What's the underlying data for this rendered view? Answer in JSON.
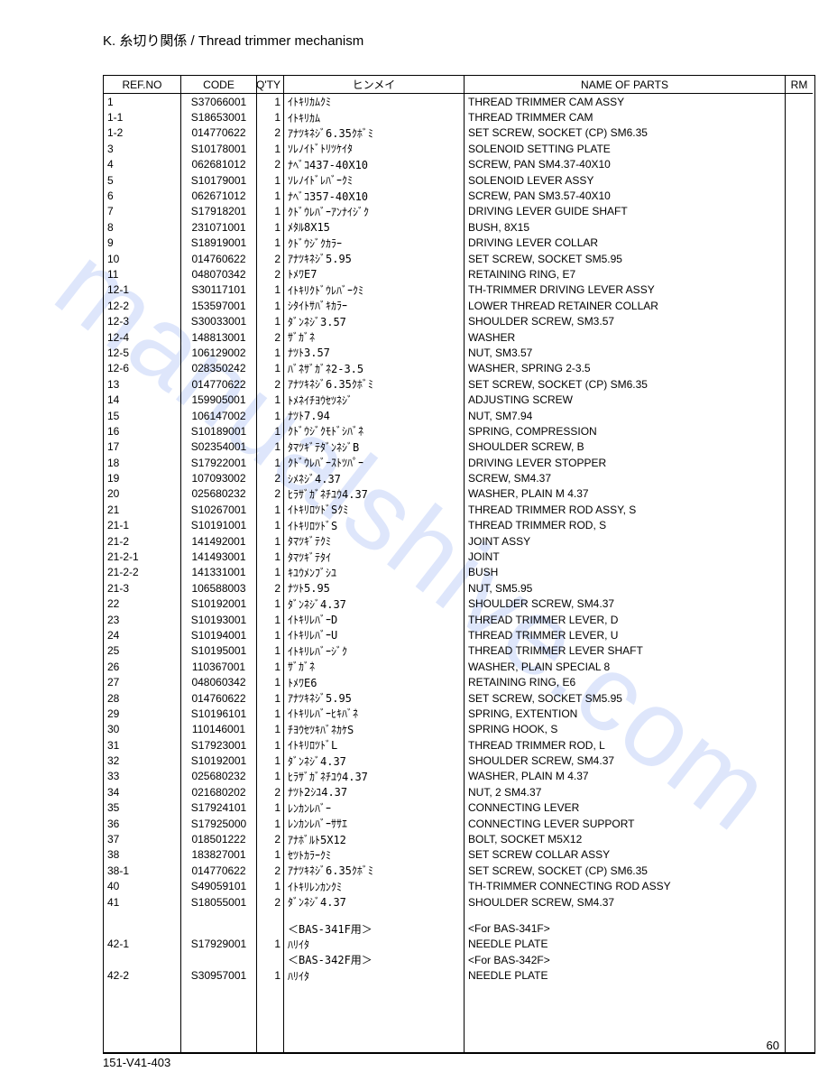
{
  "watermark_text": "manualshive.com",
  "section_title": "K. 糸切り関係 / Thread trimmer mechanism",
  "columns": {
    "ref": "REF.NO",
    "code": "CODE",
    "qty": "Q'TY",
    "hin": "ヒンメイ",
    "name": "NAME OF PARTS",
    "rm": "RM"
  },
  "rows": [
    {
      "ref": "1",
      "code": "S37066001",
      "qty": "1",
      "hin": "ｲﾄｷﾘｶﾑｸﾐ",
      "name": "THREAD TRIMMER CAM ASSY"
    },
    {
      "ref": "1-1",
      "code": "S18653001",
      "qty": "1",
      "hin": "ｲﾄｷﾘｶﾑ",
      "name": "THREAD TRIMMER CAM"
    },
    {
      "ref": "1-2",
      "code": "014770622",
      "qty": "2",
      "hin": "ｱﾅﾂｷﾈｼﾞ6.35ｸﾎﾞﾐ",
      "name": "SET SCREW, SOCKET (CP) SM6.35"
    },
    {
      "ref": "3",
      "code": "S10178001",
      "qty": "1",
      "hin": "ｿﾚﾉｲﾄﾞﾄﾘﾂｹｲﾀ",
      "name": "SOLENOID SETTING PLATE"
    },
    {
      "ref": "4",
      "code": "062681012",
      "qty": "2",
      "hin": "ﾅﾍﾞｺ437-40X10",
      "name": "SCREW, PAN SM4.37-40X10"
    },
    {
      "ref": "5",
      "code": "S10179001",
      "qty": "1",
      "hin": "ｿﾚﾉｲﾄﾞﾚﾊﾞｰｸﾐ",
      "name": "SOLENOID LEVER ASSY"
    },
    {
      "ref": "6",
      "code": "062671012",
      "qty": "1",
      "hin": "ﾅﾍﾞｺ357-40X10",
      "name": "SCREW, PAN SM3.57-40X10"
    },
    {
      "ref": "7",
      "code": "S17918201",
      "qty": "1",
      "hin": "ｸﾄﾞｳﾚﾊﾞｰｱﾝﾅｲｼﾞｸ",
      "name": "DRIVING LEVER GUIDE SHAFT"
    },
    {
      "ref": "8",
      "code": "231071001",
      "qty": "1",
      "hin": "ﾒﾀﾙ8X15",
      "name": "BUSH, 8X15"
    },
    {
      "ref": "9",
      "code": "S18919001",
      "qty": "1",
      "hin": "ｸﾄﾞｳｼﾞｸｶﾗｰ",
      "name": "DRIVING LEVER COLLAR"
    },
    {
      "ref": "10",
      "code": "014760622",
      "qty": "2",
      "hin": "ｱﾅﾂｷﾈｼﾞ5.95",
      "name": "SET SCREW, SOCKET SM5.95"
    },
    {
      "ref": "11",
      "code": "048070342",
      "qty": "2",
      "hin": "ﾄﾒﾜE7",
      "name": "RETAINING RING, E7"
    },
    {
      "ref": "12-1",
      "code": "S30117101",
      "qty": "1",
      "hin": "ｲﾄｷﾘｸﾄﾞｳﾚﾊﾞｰｸﾐ",
      "name": "TH-TRIMMER DRIVING LEVER ASSY"
    },
    {
      "ref": "12-2",
      "code": "153597001",
      "qty": "1",
      "hin": "ｼﾀｲﾄｻﾊﾞｷｶﾗｰ",
      "name": "LOWER THREAD RETAINER COLLAR"
    },
    {
      "ref": "12-3",
      "code": "S30033001",
      "qty": "1",
      "hin": "ﾀﾞﾝﾈｼﾞ3.57",
      "name": "SHOULDER SCREW, SM3.57"
    },
    {
      "ref": "12-4",
      "code": "148813001",
      "qty": "2",
      "hin": "ｻﾞｶﾞﾈ",
      "name": "WASHER"
    },
    {
      "ref": "12-5",
      "code": "106129002",
      "qty": "1",
      "hin": "ﾅﾂﾄ3.57",
      "name": "NUT, SM3.57"
    },
    {
      "ref": "12-6",
      "code": "028350242",
      "qty": "1",
      "hin": "ﾊﾞﾈｻﾞｶﾞﾈ2-3.5",
      "name": "WASHER, SPRING 2-3.5"
    },
    {
      "ref": "13",
      "code": "014770622",
      "qty": "2",
      "hin": "ｱﾅﾂｷﾈｼﾞ6.35ｸﾎﾞﾐ",
      "name": "SET SCREW, SOCKET (CP) SM6.35"
    },
    {
      "ref": "14",
      "code": "159905001",
      "qty": "1",
      "hin": "ﾄﾒﾈｲﾁﾖｳｾﾂﾈｼﾞ",
      "name": "ADJUSTING SCREW"
    },
    {
      "ref": "15",
      "code": "106147002",
      "qty": "1",
      "hin": "ﾅﾂﾄ7.94",
      "name": "NUT, SM7.94"
    },
    {
      "ref": "16",
      "code": "S10189001",
      "qty": "1",
      "hin": "ｸﾄﾞｳｼﾞｸﾓﾄﾞｼﾊﾞﾈ",
      "name": "SPRING, COMPRESSION"
    },
    {
      "ref": "17",
      "code": "S02354001",
      "qty": "1",
      "hin": "ﾀﾏﾂｷﾞﾃﾀﾞﾝﾈｼﾞB",
      "name": "SHOULDER SCREW, B"
    },
    {
      "ref": "18",
      "code": "S17922001",
      "qty": "1",
      "hin": "ｸﾄﾞｳﾚﾊﾞｰｽﾄﾂﾊﾟｰ",
      "name": "DRIVING LEVER STOPPER"
    },
    {
      "ref": "19",
      "code": "107093002",
      "qty": "2",
      "hin": "ｼﾒﾈｼﾞ4.37",
      "name": "SCREW, SM4.37"
    },
    {
      "ref": "20",
      "code": "025680232",
      "qty": "2",
      "hin": "ﾋﾗｻﾞｶﾞﾈﾁﾕｳ4.37",
      "name": "WASHER, PLAIN M 4.37"
    },
    {
      "ref": "21",
      "code": "S10267001",
      "qty": "1",
      "hin": "ｲﾄｷﾘﾛﾂﾄﾞSｸﾐ",
      "name": "THREAD TRIMMER ROD ASSY, S"
    },
    {
      "ref": "21-1",
      "code": "S10191001",
      "qty": "1",
      "hin": "ｲﾄｷﾘﾛﾂﾄﾞS",
      "name": "THREAD TRIMMER ROD, S"
    },
    {
      "ref": "21-2",
      "code": "141492001",
      "qty": "1",
      "hin": "ﾀﾏﾂｷﾞﾃｸﾐ",
      "name": "JOINT ASSY"
    },
    {
      "ref": "21-2-1",
      "code": "141493001",
      "qty": "1",
      "hin": "ﾀﾏﾂｷﾞﾃﾀｲ",
      "name": "JOINT"
    },
    {
      "ref": "21-2-2",
      "code": "141331001",
      "qty": "1",
      "hin": "ｷﾕｳﾒﾝﾌﾞｼﾕ",
      "name": "BUSH"
    },
    {
      "ref": "21-3",
      "code": "106588003",
      "qty": "2",
      "hin": "ﾅﾂﾄ5.95",
      "name": "NUT, SM5.95"
    },
    {
      "ref": "22",
      "code": "S10192001",
      "qty": "1",
      "hin": "ﾀﾞﾝﾈｼﾞ4.37",
      "name": "SHOULDER SCREW, SM4.37"
    },
    {
      "ref": "23",
      "code": "S10193001",
      "qty": "1",
      "hin": "ｲﾄｷﾘﾚﾊﾞｰD",
      "name": "THREAD TRIMMER LEVER, D"
    },
    {
      "ref": "24",
      "code": "S10194001",
      "qty": "1",
      "hin": "ｲﾄｷﾘﾚﾊﾞｰU",
      "name": "THREAD TRIMMER LEVER, U"
    },
    {
      "ref": "25",
      "code": "S10195001",
      "qty": "1",
      "hin": "ｲﾄｷﾘﾚﾊﾞｰｼﾞｸ",
      "name": "THREAD TRIMMER LEVER SHAFT"
    },
    {
      "ref": "26",
      "code": "110367001",
      "qty": "1",
      "hin": "ｻﾞｶﾞﾈ",
      "name": "WASHER, PLAIN SPECIAL 8"
    },
    {
      "ref": "27",
      "code": "048060342",
      "qty": "1",
      "hin": "ﾄﾒﾜE6",
      "name": "RETAINING RING, E6"
    },
    {
      "ref": "28",
      "code": "014760622",
      "qty": "1",
      "hin": "ｱﾅﾂｷﾈｼﾞ5.95",
      "name": "SET SCREW, SOCKET SM5.95"
    },
    {
      "ref": "29",
      "code": "S10196101",
      "qty": "1",
      "hin": "ｲﾄｷﾘﾚﾊﾞｰﾋｷﾊﾞﾈ",
      "name": "SPRING, EXTENTION"
    },
    {
      "ref": "30",
      "code": "110146001",
      "qty": "1",
      "hin": "ﾁﾖｳｾﾂｷﾊﾞﾈｶｹS",
      "name": "SPRING HOOK, S"
    },
    {
      "ref": "31",
      "code": "S17923001",
      "qty": "1",
      "hin": "ｲﾄｷﾘﾛﾂﾄﾞL",
      "name": "THREAD TRIMMER ROD, L"
    },
    {
      "ref": "32",
      "code": "S10192001",
      "qty": "1",
      "hin": "ﾀﾞﾝﾈｼﾞ4.37",
      "name": "SHOULDER SCREW, SM4.37"
    },
    {
      "ref": "33",
      "code": "025680232",
      "qty": "1",
      "hin": "ﾋﾗｻﾞｶﾞﾈﾁﾕｳ4.37",
      "name": "WASHER, PLAIN M 4.37"
    },
    {
      "ref": "34",
      "code": "021680202",
      "qty": "2",
      "hin": "ﾅﾂﾄ2ｼﾕ4.37",
      "name": "NUT, 2 SM4.37"
    },
    {
      "ref": "35",
      "code": "S17924101",
      "qty": "1",
      "hin": "ﾚﾝｶﾝﾚﾊﾞｰ",
      "name": "CONNECTING LEVER"
    },
    {
      "ref": "36",
      "code": "S17925000",
      "qty": "1",
      "hin": "ﾚﾝｶﾝﾚﾊﾞｰｻｻｴ",
      "name": "CONNECTING LEVER SUPPORT"
    },
    {
      "ref": "37",
      "code": "018501222",
      "qty": "2",
      "hin": "ｱﾅﾎﾞﾙﾄ5X12",
      "name": "BOLT, SOCKET M5X12"
    },
    {
      "ref": "38",
      "code": "183827001",
      "qty": "1",
      "hin": "ｾﾂﾄｶﾗｰｸﾐ",
      "name": "SET SCREW COLLAR ASSY"
    },
    {
      "ref": "38-1",
      "code": "014770622",
      "qty": "2",
      "hin": "ｱﾅﾂｷﾈｼﾞ6.35ｸﾎﾞﾐ",
      "name": "SET SCREW, SOCKET (CP) SM6.35"
    },
    {
      "ref": "40",
      "code": "S49059101",
      "qty": "1",
      "hin": "ｲﾄｷﾘﾚﾝｶﾝｸﾐ",
      "name": "TH-TRIMMER CONNECTING ROD ASSY"
    },
    {
      "ref": "41",
      "code": "S18055001",
      "qty": "2",
      "hin": "ﾀﾞﾝﾈｼﾞ4.37",
      "name": "SHOULDER SCREW, SM4.37"
    }
  ],
  "rows2": [
    {
      "ref": "",
      "code": "",
      "qty": "",
      "hin": "＜BAS-341F用＞",
      "name": "<For BAS-341F>"
    },
    {
      "ref": "42-1",
      "code": "S17929001",
      "qty": "1",
      "hin": "ﾊﾘｲﾀ",
      "name": "NEEDLE PLATE"
    },
    {
      "ref": "",
      "code": "",
      "qty": "",
      "hin": "＜BAS-342F用＞",
      "name": "<For BAS-342F>"
    },
    {
      "ref": "42-2",
      "code": "S30957001",
      "qty": "1",
      "hin": "ﾊﾘｲﾀ",
      "name": "NEEDLE PLATE"
    }
  ],
  "footer_code": "151-V41-403",
  "page_number": "60"
}
